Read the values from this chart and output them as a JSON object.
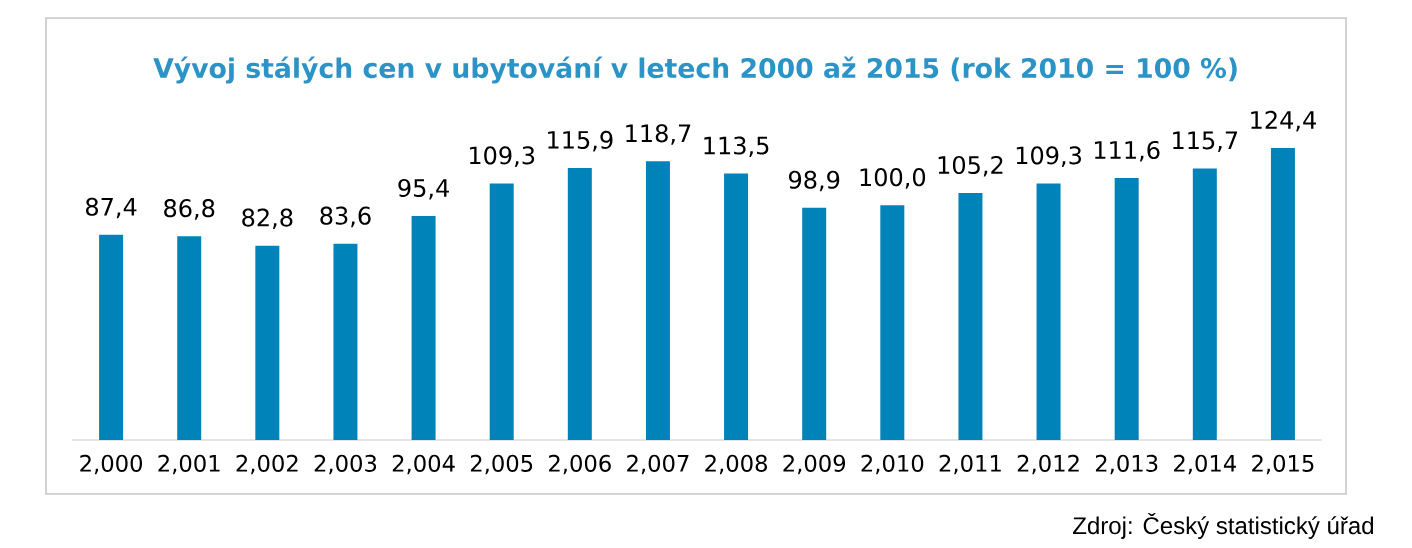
{
  "chart_data": {
    "type": "bar",
    "title": "Vývoj stálých cen v ubytování v letech 2000 až 2015 (rok 2010 = 100 %)",
    "categories": [
      "2,000",
      "2,001",
      "2,002",
      "2,003",
      "2,004",
      "2,005",
      "2,006",
      "2,007",
      "2,008",
      "2,009",
      "2,010",
      "2,011",
      "2,012",
      "2,013",
      "2,014",
      "2,015"
    ],
    "values": [
      87.4,
      86.8,
      82.8,
      83.6,
      95.4,
      109.3,
      115.9,
      118.7,
      113.5,
      98.9,
      100.0,
      105.2,
      109.3,
      111.6,
      115.7,
      124.4
    ],
    "value_labels": [
      "87,4",
      "86,8",
      "82,8",
      "83,6",
      "95,4",
      "109,3",
      "115,9",
      "118,7",
      "113,5",
      "98,9",
      "100,0",
      "105,2",
      "109,3",
      "111,6",
      "115,7",
      "124,4"
    ],
    "color": "#0083b8",
    "annotations": [
      "Zdroj: Český statistický úřad"
    ]
  }
}
